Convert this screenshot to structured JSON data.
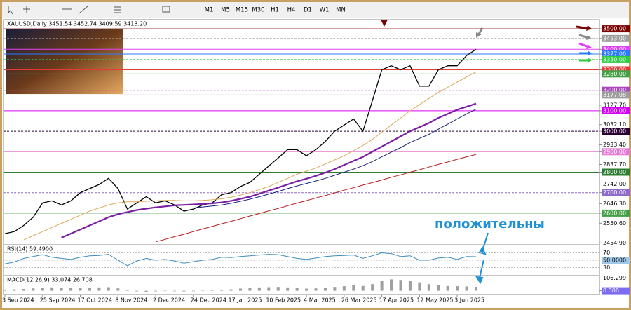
{
  "toolbar": {
    "timeframes": [
      "M1",
      "M5",
      "M15",
      "M30",
      "H1",
      "H4",
      "D1",
      "W1",
      "MN"
    ]
  },
  "chart_data": {
    "type": "line",
    "title": "XAUUSD,Daily  3451.54 3452.74 3409.59 3413.20",
    "annotation": "положительны",
    "categories": [
      "3 Sep 2024",
      null,
      null,
      null,
      "25 Sep 2024",
      null,
      null,
      null,
      "17 Oct 2024",
      null,
      null,
      null,
      "8 Nov 2024",
      null,
      null,
      null,
      "2 Dec 2024",
      null,
      null,
      null,
      "24 Dec 2024",
      null,
      null,
      null,
      "17 Jan 2025",
      null,
      null,
      null,
      "10 Feb 2025",
      null,
      null,
      null,
      "4 Mar 2025",
      null,
      null,
      null,
      "26 Mar 2025",
      null,
      null,
      null,
      "17 Apr 2025",
      null,
      null,
      null,
      "12 May 2025",
      null,
      null,
      null,
      "3 Jun 2025",
      null,
      null
    ],
    "series": [
      {
        "color": "#000000",
        "values": [
          2500,
          2510,
          2540,
          2580,
          2650,
          2660,
          2640,
          2660,
          2700,
          2720,
          2740,
          2770,
          2720,
          2620,
          2650,
          2680,
          2650,
          2660,
          2640,
          2610,
          2620,
          2640,
          2650,
          2690,
          2700,
          2730,
          2750,
          2790,
          2830,
          2870,
          2910,
          2910,
          2880,
          2910,
          2950,
          3000,
          3030,
          3060,
          3000,
          3150,
          3300,
          3320,
          3300,
          3320,
          3220,
          3220,
          3300,
          3320,
          3320,
          3370,
          3400
        ]
      },
      {
        "color": "#d9a95a",
        "values": [
          null,
          null,
          2470,
          2490,
          2510,
          2530,
          2550,
          2570,
          2590,
          2610,
          2625,
          2640,
          2650,
          2655,
          2655,
          2658,
          2660,
          2662,
          2662,
          2660,
          2660,
          2662,
          2665,
          2670,
          2678,
          2688,
          2700,
          2715,
          2730,
          2750,
          2770,
          2790,
          2805,
          2820,
          2840,
          2860,
          2880,
          2905,
          2930,
          2960,
          2995,
          3030,
          3065,
          3100,
          3130,
          3160,
          3190,
          3215,
          3240,
          3265,
          3290
        ]
      },
      {
        "color": "#7b1fa2",
        "values": [
          null,
          null,
          null,
          null,
          null,
          null,
          2480,
          2500,
          2520,
          2540,
          2560,
          2580,
          2595,
          2605,
          2615,
          2622,
          2628,
          2633,
          2638,
          2640,
          2642,
          2645,
          2648,
          2652,
          2660,
          2670,
          2680,
          2695,
          2710,
          2725,
          2740,
          2755,
          2768,
          2782,
          2798,
          2815,
          2835,
          2855,
          2875,
          2900,
          2925,
          2950,
          2975,
          3000,
          3020,
          3040,
          3065,
          3085,
          3105,
          3120,
          3135
        ]
      },
      {
        "color": "#1a237e",
        "values": [
          null,
          null,
          null,
          null,
          null,
          null,
          null,
          null,
          null,
          null,
          null,
          null,
          null,
          null,
          null,
          null,
          null,
          null,
          null,
          null,
          2625,
          2630,
          2635,
          2640,
          2648,
          2658,
          2668,
          2680,
          2693,
          2706,
          2720,
          2733,
          2745,
          2757,
          2770,
          2785,
          2800,
          2815,
          2832,
          2852,
          2875,
          2898,
          2920,
          2945,
          2965,
          2985,
          3010,
          3035,
          3060,
          3085,
          3108
        ]
      },
      {
        "color": "#b71c1c",
        "values": [
          null,
          null,
          null,
          null,
          null,
          null,
          null,
          null,
          null,
          null,
          null,
          null,
          null,
          null,
          null,
          null,
          2460,
          2472,
          2485,
          2497,
          2510,
          2523,
          2535,
          2548,
          2560,
          2573,
          2586,
          2598,
          2611,
          2623,
          2636,
          2649,
          2661,
          2674,
          2686,
          2699,
          2712,
          2724,
          2737,
          2749,
          2762,
          2775,
          2787,
          2800,
          2812,
          2825,
          2838,
          2850,
          2863,
          2875,
          2887
        ]
      }
    ],
    "ylim": [
      2449,
      3538
    ],
    "yticks": [
      {
        "value": 3500,
        "label": "3500.00"
      },
      {
        "value": 3453,
        "label": "3453.00"
      },
      {
        "value": 3400,
        "label": "3400.00"
      },
      {
        "value": 3377,
        "label": "3377.00"
      },
      {
        "value": 3350,
        "label": "3350.00"
      },
      {
        "value": 3300,
        "label": "3300.00"
      },
      {
        "value": 3280,
        "label": "3280.00"
      },
      {
        "value": 3200,
        "label": "3200.00"
      },
      {
        "value": 3177.08,
        "label": "3177.08"
      },
      {
        "value": 3127.7,
        "label": "3127.70"
      },
      {
        "value": 3100,
        "label": "3100.00"
      },
      {
        "value": 3032.1,
        "label": "3032.10"
      },
      {
        "value": 3000,
        "label": "3000.00"
      },
      {
        "value": 2933.4,
        "label": "2933.40"
      },
      {
        "value": 2900,
        "label": "2900.00"
      },
      {
        "value": 2837.7,
        "label": "2837.70"
      },
      {
        "value": 2800,
        "label": "2800.00"
      },
      {
        "value": 2742,
        "label": "2742.00"
      },
      {
        "value": 2700,
        "label": "2700.00"
      },
      {
        "value": 2646.3,
        "label": "2646.30"
      },
      {
        "value": 2600,
        "label": "2600.00"
      },
      {
        "value": 2550.6,
        "label": "2550.60"
      },
      {
        "value": 2454.9,
        "label": "2454.90"
      }
    ],
    "levels": [
      {
        "value": 3500,
        "color": "#7b0000"
      },
      {
        "value": 3453,
        "color": "#9e9e9e"
      },
      {
        "value": 3400,
        "color": "#e040fb"
      },
      {
        "value": 3377,
        "color": "#2979ff"
      },
      {
        "value": 3350,
        "color": "#2ecc40"
      },
      {
        "value": 3300,
        "color": "#e53935"
      },
      {
        "value": 3280,
        "color": "#43a047"
      },
      {
        "value": 3200,
        "color": "#ab47bc"
      },
      {
        "value": 3177.08,
        "color": "#9e9e9e"
      },
      {
        "value": 3100,
        "color": "#d500f9"
      },
      {
        "value": 3000,
        "color": "#2b0033"
      },
      {
        "value": 2900,
        "color": "#e57ad6"
      },
      {
        "value": 2800,
        "color": "#2e7d32"
      },
      {
        "value": 2700,
        "color": "#8e6cc9"
      },
      {
        "value": 2600,
        "color": "#43a047"
      }
    ],
    "rsi": {
      "title": "RSI(14) 59.4900",
      "color": "#3c8dbc",
      "ylim": [
        10,
        90
      ],
      "yticks": [
        70,
        {
          "value": 50,
          "label": "50.0000"
        },
        30
      ],
      "values": [
        40,
        45,
        55,
        60,
        65,
        58,
        55,
        52,
        58,
        62,
        63,
        66,
        50,
        35,
        48,
        55,
        50,
        52,
        48,
        42,
        46,
        50,
        52,
        58,
        57,
        60,
        62,
        64,
        66,
        65,
        60,
        55,
        52,
        56,
        60,
        62,
        63,
        64,
        55,
        62,
        70,
        68,
        60,
        62,
        50,
        50,
        56,
        58,
        52,
        60,
        59.49
      ]
    },
    "macd": {
      "title": "MACD(12,26,9) 33.074 26.708",
      "color": "#9e9e9e",
      "ylim": [
        -20,
        115
      ],
      "yticks": [
        {
          "value": 106.299,
          "label": "106.299"
        },
        {
          "value": 0,
          "label": "0.000"
        }
      ],
      "values": [
        10,
        12,
        15,
        20,
        25,
        28,
        26,
        22,
        24,
        26,
        28,
        30,
        20,
        5,
        -5,
        -8,
        -5,
        -3,
        -4,
        -6,
        -4,
        0,
        3,
        8,
        12,
        18,
        22,
        28,
        30,
        32,
        28,
        22,
        18,
        20,
        26,
        32,
        38,
        45,
        40,
        55,
        80,
        95,
        90,
        85,
        70,
        55,
        45,
        40,
        38,
        36,
        33
      ]
    }
  }
}
